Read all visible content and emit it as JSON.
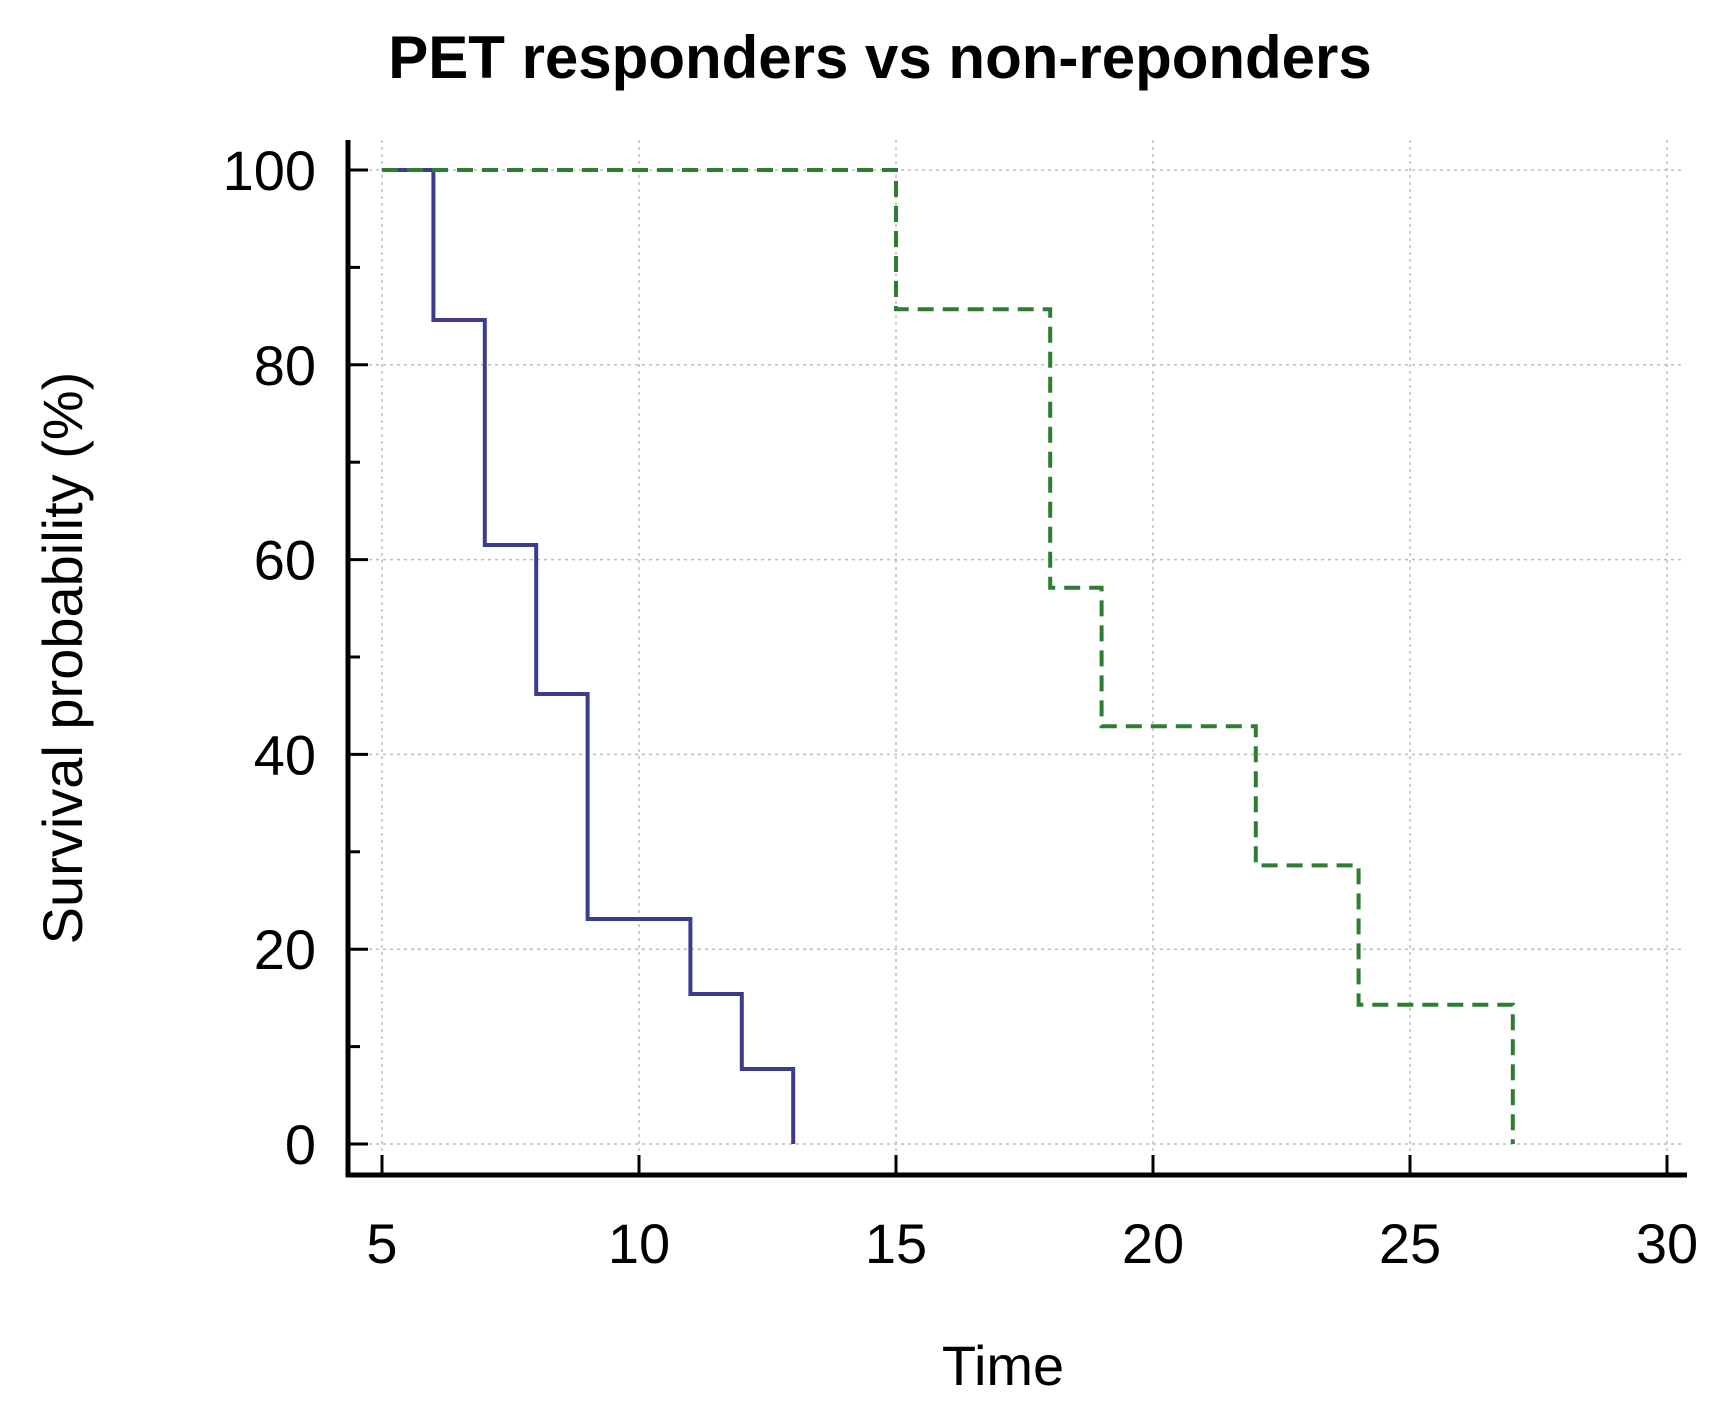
{
  "chart_data": {
    "type": "line",
    "subtype": "kaplan-meier step",
    "title": "PET responders vs non-reponders",
    "xlabel": "Time",
    "ylabel": "Survival probability (%)",
    "xlim": [
      5,
      30
    ],
    "ylim": [
      0,
      100
    ],
    "x_ticks": [
      5,
      10,
      15,
      20,
      25,
      30
    ],
    "y_ticks": [
      0,
      20,
      40,
      60,
      80,
      100
    ],
    "y_minor_ticks": [
      10,
      30,
      50,
      70,
      90
    ],
    "grid": true,
    "legend": "none",
    "series": [
      {
        "style": "solid",
        "color": "#3c3c8c",
        "points": [
          [
            5,
            100
          ],
          [
            6,
            100
          ],
          [
            6,
            84.6
          ],
          [
            7,
            84.6
          ],
          [
            7,
            61.5
          ],
          [
            8,
            61.5
          ],
          [
            8,
            46.2
          ],
          [
            9,
            46.2
          ],
          [
            9,
            23.1
          ],
          [
            11,
            23.1
          ],
          [
            11,
            15.4
          ],
          [
            12,
            15.4
          ],
          [
            12,
            7.7
          ],
          [
            13,
            7.7
          ],
          [
            13,
            0
          ]
        ]
      },
      {
        "style": "dashed",
        "color": "#2e7d32",
        "points": [
          [
            5,
            100
          ],
          [
            15,
            100
          ],
          [
            15,
            85.7
          ],
          [
            18,
            85.7
          ],
          [
            18,
            57.1
          ],
          [
            19,
            57.1
          ],
          [
            19,
            42.9
          ],
          [
            22,
            42.9
          ],
          [
            22,
            28.6
          ],
          [
            24,
            28.6
          ],
          [
            24,
            14.3
          ],
          [
            27,
            14.3
          ],
          [
            27,
            0
          ]
        ]
      }
    ]
  }
}
